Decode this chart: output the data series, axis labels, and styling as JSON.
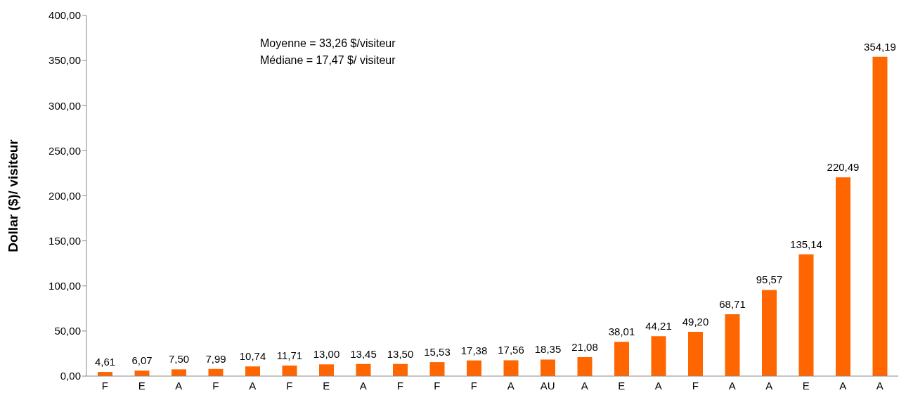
{
  "chart_data": {
    "type": "bar",
    "ylabel": "Dollar ($)/ visiteur",
    "annotations": [
      "Moyenne = 33,26 $/visiteur",
      "Médiane = 17,47 $/ visiteur"
    ],
    "categories": [
      "F",
      "E",
      "A",
      "F",
      "A",
      "F",
      "E",
      "A",
      "F",
      "F",
      "F",
      "A",
      "AU",
      "A",
      "E",
      "A",
      "F",
      "A",
      "A",
      "E",
      "A",
      "A"
    ],
    "values": [
      4.61,
      6.07,
      7.5,
      7.99,
      10.74,
      11.71,
      13.0,
      13.45,
      13.5,
      15.53,
      17.38,
      17.56,
      18.35,
      21.08,
      38.01,
      44.21,
      49.2,
      68.71,
      95.57,
      135.14,
      220.49,
      354.19
    ],
    "value_labels": [
      "4,61",
      "6,07",
      "7,50",
      "7,99",
      "10,74",
      "11,71",
      "13,00",
      "13,45",
      "13,50",
      "15,53",
      "17,38",
      "17,56",
      "18,35",
      "21,08",
      "38,01",
      "44,21",
      "49,20",
      "68,71",
      "95,57",
      "135,14",
      "220,49",
      "354,19"
    ],
    "color": "#ff6600",
    "ylim": [
      0,
      400
    ],
    "yticks": [
      {
        "value": 0,
        "label": "0,00"
      },
      {
        "value": 50,
        "label": "50,00"
      },
      {
        "value": 100,
        "label": "100,00"
      },
      {
        "value": 150,
        "label": "150,00"
      },
      {
        "value": 200,
        "label": "200,00"
      },
      {
        "value": 250,
        "label": "250,00"
      },
      {
        "value": 300,
        "label": "300,00"
      },
      {
        "value": 350,
        "label": "350,00"
      },
      {
        "value": 400,
        "label": "400,00"
      }
    ],
    "grid": false,
    "legend": false
  }
}
